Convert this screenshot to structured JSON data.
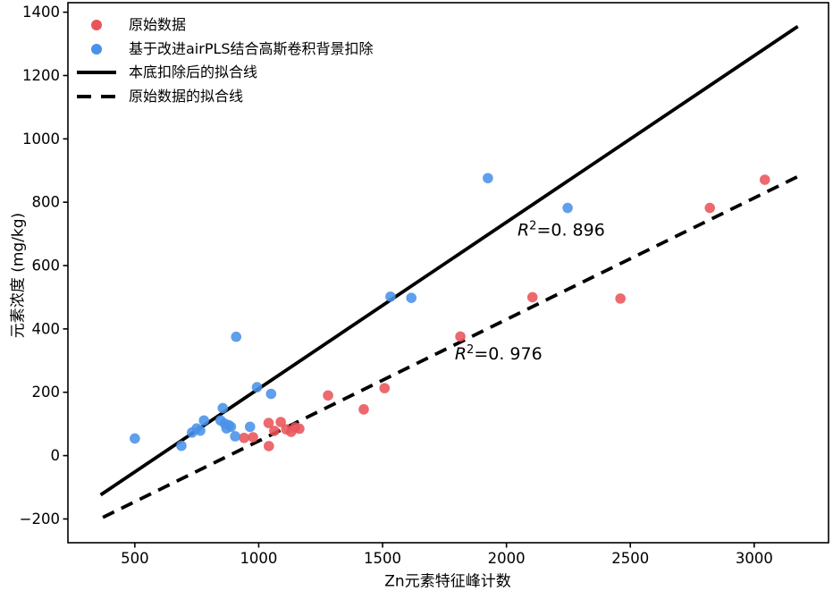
{
  "figure": {
    "background": "#ffffff"
  },
  "colors": {
    "original_series": "#e9545a",
    "corrected_series": "#4a92e8",
    "fit_lines": "#000000",
    "axis": "#000000"
  },
  "chart_data": {
    "type": "scatter",
    "title": "",
    "xlabel": "Zn元素特征峰计数",
    "ylabel": "元素浓度 (mg/kg)",
    "xlim": [
      230,
      3300
    ],
    "ylim": [
      -275,
      1430
    ],
    "grid": false,
    "legend_position": "upper-left",
    "xticks": {
      "values": [
        500,
        1000,
        1500,
        2000,
        2500,
        3000
      ],
      "labels": [
        "500",
        "1000",
        "1500",
        "2000",
        "2500",
        "3000"
      ]
    },
    "yticks": {
      "values": [
        -200,
        0,
        200,
        400,
        600,
        800,
        1000,
        1200,
        1400
      ],
      "labels": [
        "−200",
        "0",
        "200",
        "400",
        "600",
        "800",
        "1000",
        "1200",
        "1400"
      ]
    },
    "series": [
      {
        "name": "原始数据",
        "kind": "scatter",
        "color": "#e9545a",
        "points": [
          [
            941,
            56
          ],
          [
            977,
            58
          ],
          [
            1041,
            30
          ],
          [
            1040,
            103
          ],
          [
            1063,
            78
          ],
          [
            1089,
            106
          ],
          [
            1111,
            83
          ],
          [
            1131,
            75
          ],
          [
            1147,
            89
          ],
          [
            1164,
            85
          ],
          [
            1280,
            190
          ],
          [
            1424,
            146
          ],
          [
            1508,
            213
          ],
          [
            1814,
            376
          ],
          [
            2105,
            500
          ],
          [
            2460,
            496
          ],
          [
            2821,
            782
          ],
          [
            3043,
            871
          ]
        ]
      },
      {
        "name": "基于改进airPLS结合高斯卷积背景扣除",
        "kind": "scatter",
        "color": "#4a92e8",
        "points": [
          [
            500,
            54
          ],
          [
            688,
            31
          ],
          [
            731,
            73
          ],
          [
            750,
            86
          ],
          [
            764,
            79
          ],
          [
            779,
            111
          ],
          [
            846,
            111
          ],
          [
            855,
            150
          ],
          [
            863,
            101
          ],
          [
            870,
            86
          ],
          [
            879,
            96
          ],
          [
            888,
            91
          ],
          [
            905,
            61
          ],
          [
            909,
            375
          ],
          [
            965,
            91
          ],
          [
            993,
            216
          ],
          [
            1050,
            195
          ],
          [
            1532,
            502
          ],
          [
            1616,
            498
          ],
          [
            1925,
            876
          ],
          [
            2247,
            782
          ]
        ]
      },
      {
        "name": "本底扣除后的拟合线",
        "kind": "line",
        "style": "solid",
        "color": "#000000",
        "r_squared": 0.896,
        "from": [
          362,
          -124
        ],
        "to": [
          3176,
          1355
        ]
      },
      {
        "name": "原始数据的拟合线",
        "kind": "line",
        "style": "dashed",
        "color": "#000000",
        "r_squared": 0.976,
        "from": [
          371,
          -195
        ],
        "to": [
          3176,
          881
        ]
      }
    ],
    "annotations": [
      {
        "prefix": "R",
        "sup": "2",
        "text": "=0. 896",
        "value": 0.896,
        "x": 2221,
        "y": 715
      },
      {
        "prefix": "R",
        "sup": "2",
        "text": "=0. 976",
        "value": 0.976,
        "x": 1968,
        "y": 324
      }
    ]
  },
  "legend": {
    "items": [
      {
        "label": "原始数据",
        "marker": "dot",
        "color": "#e9545a"
      },
      {
        "label": "基于改进airPLS结合高斯卷积背景扣除",
        "marker": "dot",
        "color": "#4a92e8"
      },
      {
        "label": "本底扣除后的拟合线",
        "marker": "line-solid",
        "color": "#000000"
      },
      {
        "label": "原始数据的拟合线",
        "marker": "line-dashed",
        "color": "#000000"
      }
    ]
  }
}
